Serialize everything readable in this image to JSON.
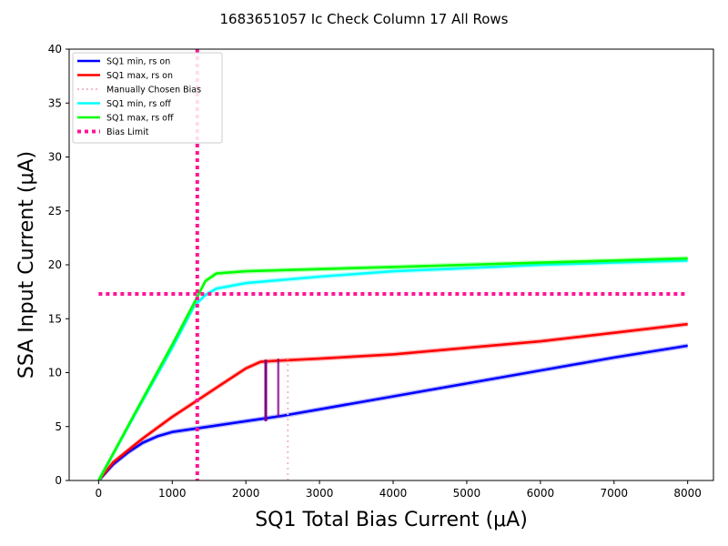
{
  "chart_data": {
    "type": "line",
    "title": "1683651057 Ic Check Column 17 All Rows",
    "xlabel": "SQ1 Total Bias Current (μA)",
    "ylabel": "SSA Input Current (μA)",
    "xlim": [
      -400,
      8350
    ],
    "ylim": [
      0,
      40
    ],
    "x_ticks": [
      0,
      1000,
      2000,
      3000,
      4000,
      5000,
      6000,
      7000,
      8000
    ],
    "y_ticks": [
      0,
      5,
      10,
      15,
      20,
      25,
      30,
      35,
      40
    ],
    "grid": false,
    "legend_placement": "upper-left",
    "colors": {
      "sq1_min_rs_on": "#0000ff",
      "sq1_max_rs_on": "#ff0000",
      "manual_bias": "#f4b8cc",
      "sq1_min_rs_off": "#00ffff",
      "sq1_max_rs_off": "#00ff00",
      "bias_limit": "#ff1493",
      "ic_marker": "#800080"
    },
    "legend": [
      {
        "key": "sq1_min_rs_on",
        "label": "SQ1 min, rs on",
        "style": "solid"
      },
      {
        "key": "sq1_max_rs_on",
        "label": "SQ1 max, rs on",
        "style": "solid"
      },
      {
        "key": "manual_bias",
        "label": "Manually Chosen Bias",
        "style": "dotted"
      },
      {
        "key": "sq1_min_rs_off",
        "label": "SQ1 min, rs off",
        "style": "solid"
      },
      {
        "key": "sq1_max_rs_off",
        "label": "SQ1 max, rs off",
        "style": "solid"
      },
      {
        "key": "bias_limit",
        "label": "Bias Limit",
        "style": "dotted-thick"
      }
    ],
    "series": [
      {
        "key": "sq1_min_rs_on",
        "name": "SQ1 min, rs on",
        "x": [
          0,
          200,
          400,
          600,
          800,
          1000,
          1200,
          1500,
          2000,
          2500,
          3000,
          4000,
          5000,
          6000,
          7000,
          8000
        ],
        "y": [
          0,
          1.5,
          2.6,
          3.5,
          4.1,
          4.5,
          4.7,
          5.0,
          5.5,
          6.0,
          6.6,
          7.8,
          9.0,
          10.2,
          11.4,
          12.5
        ]
      },
      {
        "key": "sq1_max_rs_on",
        "name": "SQ1 max, rs on",
        "x": [
          0,
          200,
          400,
          600,
          800,
          1000,
          1200,
          1400,
          1600,
          1800,
          2000,
          2200,
          2400,
          3000,
          4000,
          5000,
          6000,
          7000,
          8000
        ],
        "y": [
          0,
          1.7,
          2.8,
          3.9,
          4.9,
          5.9,
          6.8,
          7.7,
          8.6,
          9.5,
          10.4,
          11.0,
          11.1,
          11.3,
          11.7,
          12.3,
          12.9,
          13.7,
          14.5
        ]
      },
      {
        "key": "sq1_min_rs_off",
        "name": "SQ1 min, rs off",
        "x": [
          0,
          500,
          1000,
          1300,
          1450,
          1600,
          2000,
          3000,
          4000,
          5000,
          6000,
          7000,
          8000
        ],
        "y": [
          0,
          6.2,
          12.3,
          16.2,
          17.2,
          17.8,
          18.3,
          18.9,
          19.4,
          19.7,
          20.0,
          20.2,
          20.4
        ]
      },
      {
        "key": "sq1_max_rs_off",
        "name": "SQ1 max, rs off",
        "x": [
          0,
          500,
          1000,
          1300,
          1450,
          1600,
          2000,
          3000,
          4000,
          5000,
          6000,
          7000,
          8000
        ],
        "y": [
          0,
          6.3,
          12.6,
          16.5,
          18.5,
          19.2,
          19.4,
          19.6,
          19.8,
          20.0,
          20.2,
          20.4,
          20.6
        ]
      }
    ],
    "manual_bias_x": 2570,
    "manual_bias_y": [
      0,
      11.2
    ],
    "bias_limit_x": 1340,
    "bias_limit_y": 17.3,
    "ic_markers": [
      {
        "x": 2270,
        "y": [
          5.5,
          11.2
        ]
      },
      {
        "x": 2440,
        "y": [
          5.9,
          11.3
        ]
      }
    ]
  }
}
